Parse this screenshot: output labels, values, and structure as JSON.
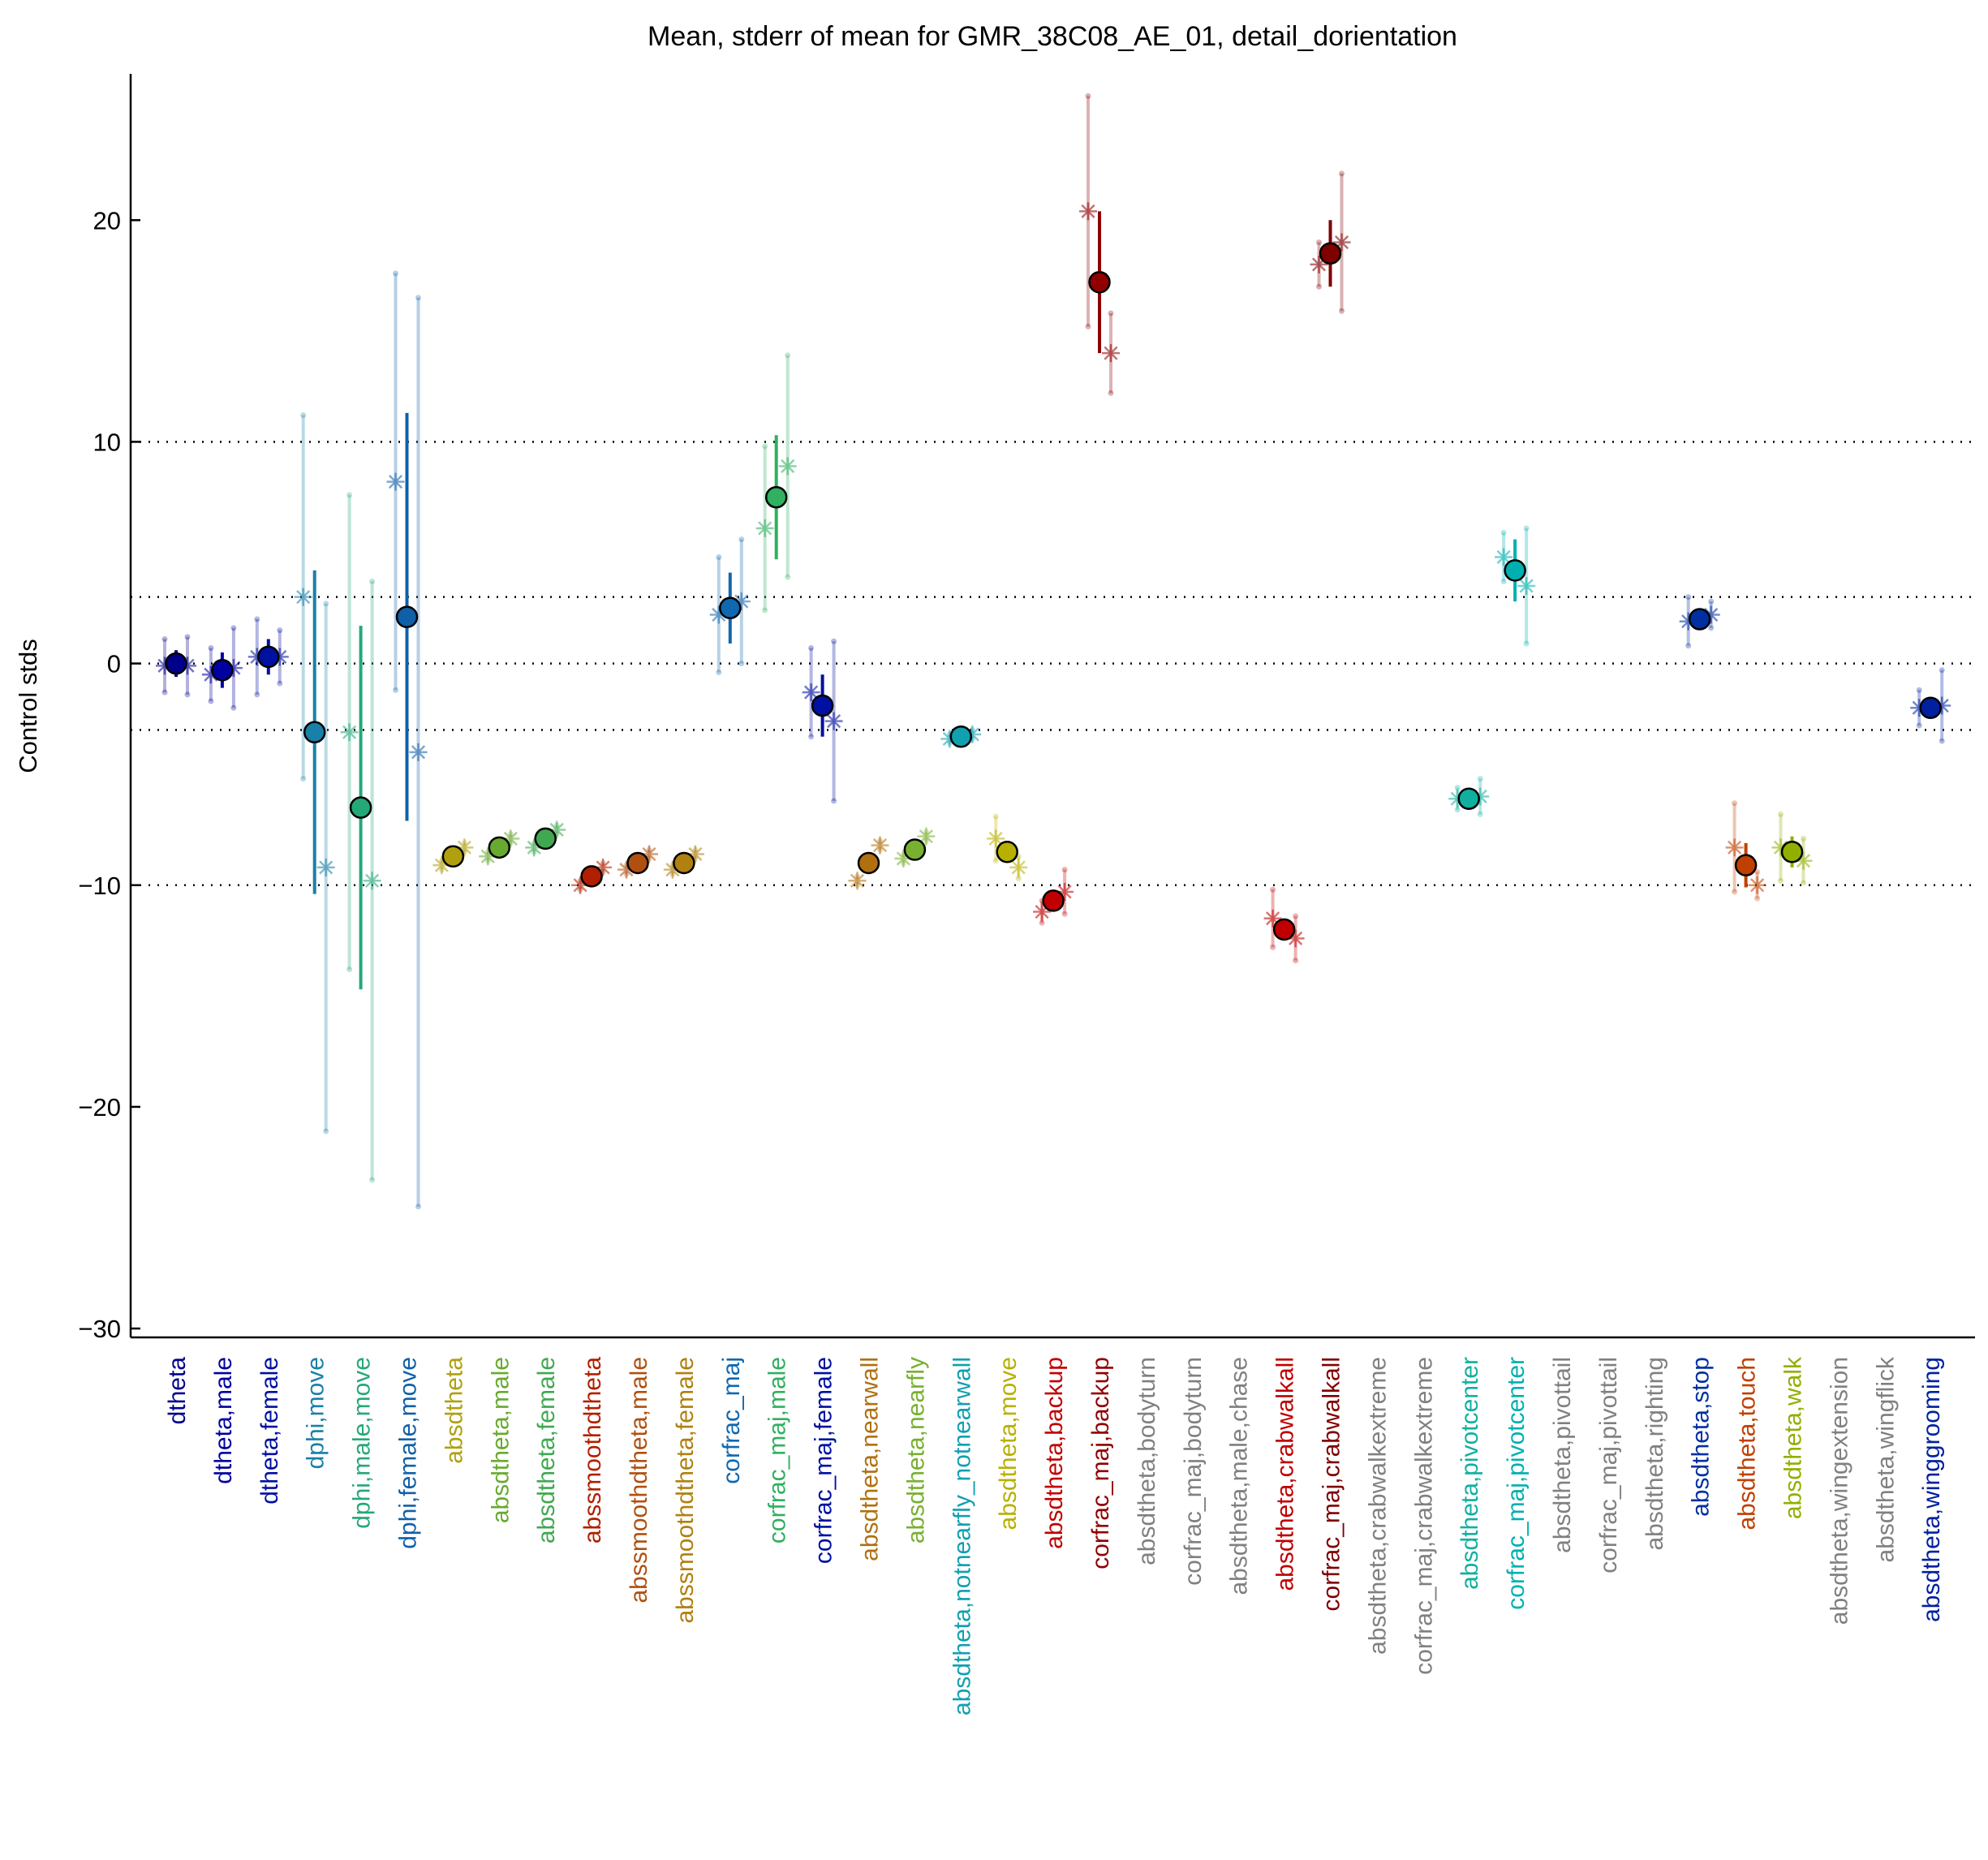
{
  "chart_data": {
    "type": "errorbar",
    "title": "Mean, stderr of mean for GMR_38C08_AE_01, detail_dorientation",
    "ylabel": "Control stds",
    "categories": [
      "dtheta",
      "dtheta,male",
      "dtheta,female",
      "dphi,move",
      "dphi,male,move",
      "dphi,female,move",
      "absdtheta",
      "absdtheta,male",
      "absdtheta,female",
      "abssmoothdtheta",
      "abssmoothdtheta,male",
      "abssmoothdtheta,female",
      "corfrac_maj",
      "corfrac_maj,male",
      "corfrac_maj,female",
      "absdtheta,nearwall",
      "absdtheta,nearfly",
      "absdtheta,notnearfly_notnearwall",
      "absdtheta,move",
      "absdtheta,backup",
      "corfrac_maj,backup",
      "absdtheta,bodyturn",
      "corfrac_maj,bodyturn",
      "absdtheta,male,chase",
      "absdtheta,crabwalkall",
      "corfrac_maj,crabwalkall",
      "absdtheta,crabwalkextreme",
      "corfrac_maj,crabwalkextreme",
      "absdtheta,pivotcenter",
      "corfrac_maj,pivotcenter",
      "absdtheta,pivottail",
      "corfrac_maj,pivottail",
      "absdtheta,righting",
      "absdtheta,stop",
      "absdtheta,touch",
      "absdtheta,walk",
      "absdtheta,wingextension",
      "absdtheta,wingflick",
      "absdtheta,winggrooming"
    ],
    "colors": [
      "#00008b",
      "#0000a0",
      "#0010a0",
      "#1a80a8",
      "#25a878",
      "#1060a8",
      "#b0a010",
      "#68aa30",
      "#40a850",
      "#b02000",
      "#b05010",
      "#b08010",
      "#1068b0",
      "#30b060",
      "#0010a0",
      "#b07010",
      "#78b030",
      "#10a0b0",
      "#b8b000",
      "#c00000",
      "#900000",
      "#808080",
      "#808080",
      "#808080",
      "#c00000",
      "#800000",
      "#808080",
      "#808080",
      "#10b0a0",
      "#00b0b0",
      "#808080",
      "#808080",
      "#808080",
      "#0030a0",
      "#c04000",
      "#90b000",
      "#808080",
      "#808080",
      "#0020a0"
    ],
    "mean": [
      0,
      -0.3,
      0.3,
      -3.1,
      -6.5,
      2.1,
      -8.7,
      -8.3,
      -7.9,
      -9.6,
      -9.0,
      -9.0,
      2.5,
      7.5,
      -1.9,
      -9.0,
      -8.4,
      -3.3,
      -8.5,
      -10.7,
      17.2,
      null,
      null,
      null,
      -12.0,
      18.5,
      null,
      null,
      -6.1,
      4.2,
      null,
      null,
      null,
      2.0,
      -9.1,
      -8.5,
      null,
      null,
      -2.0
    ],
    "mean_err": [
      0.6,
      0.8,
      0.8,
      7.3,
      8.2,
      9.2,
      0.2,
      0.2,
      0.2,
      0.2,
      0.2,
      0.2,
      1.6,
      2.8,
      1.4,
      0.2,
      0.2,
      0.2,
      0.3,
      0.3,
      3.2,
      null,
      null,
      null,
      0.2,
      1.5,
      null,
      null,
      0.2,
      1.4,
      null,
      null,
      null,
      0.3,
      1.0,
      0.7,
      null,
      null,
      0.4
    ],
    "male": [
      -0.1,
      -0.5,
      0.3,
      3.0,
      -3.1,
      8.2,
      -9.1,
      -8.7,
      -8.3,
      -10.0,
      -9.3,
      -9.3,
      2.2,
      6.1,
      -1.3,
      -9.8,
      -8.8,
      -3.4,
      -7.9,
      -11.2,
      20.4,
      null,
      null,
      null,
      -11.5,
      18.0,
      null,
      null,
      -6.1,
      4.8,
      null,
      null,
      null,
      1.9,
      -8.3,
      -8.3,
      null,
      null,
      -2.0
    ],
    "male_err": [
      1.2,
      1.2,
      1.7,
      8.2,
      10.7,
      9.4,
      0.2,
      0.2,
      0.2,
      0.2,
      0.2,
      0.2,
      2.6,
      3.7,
      2.0,
      0.2,
      0.2,
      0.2,
      1.0,
      0.5,
      5.2,
      null,
      null,
      null,
      1.3,
      1.0,
      null,
      null,
      0.5,
      1.1,
      null,
      null,
      null,
      1.1,
      2.0,
      1.5,
      null,
      null,
      0.8
    ],
    "female": [
      -0.1,
      -0.2,
      0.3,
      -9.2,
      -9.8,
      -4.0,
      -8.3,
      -7.9,
      -7.5,
      -9.2,
      -8.6,
      -8.6,
      2.8,
      8.9,
      -2.6,
      -8.2,
      -7.8,
      -3.2,
      -9.2,
      -10.3,
      14.0,
      null,
      null,
      null,
      -12.4,
      19.0,
      null,
      null,
      -6.0,
      3.5,
      null,
      null,
      null,
      2.2,
      -10.0,
      -8.9,
      null,
      null,
      -1.9
    ],
    "female_err": [
      1.3,
      1.8,
      1.2,
      11.9,
      13.5,
      20.5,
      0.2,
      0.2,
      0.2,
      0.2,
      0.2,
      0.2,
      2.8,
      5.0,
      3.6,
      0.2,
      0.2,
      0.2,
      0.5,
      1.0,
      1.8,
      null,
      null,
      null,
      1.0,
      3.1,
      null,
      null,
      0.8,
      2.6,
      null,
      null,
      null,
      0.6,
      0.6,
      1.0,
      null,
      null,
      1.6
    ],
    "ylim": [
      -30.4,
      26.6
    ],
    "yticks": [
      {
        "value": -30,
        "label": "−30"
      },
      {
        "value": -20,
        "label": "−20"
      },
      {
        "value": -10,
        "label": "−10"
      },
      0,
      10,
      20
    ],
    "hlines": [
      -10,
      -3,
      0,
      3,
      10
    ]
  }
}
